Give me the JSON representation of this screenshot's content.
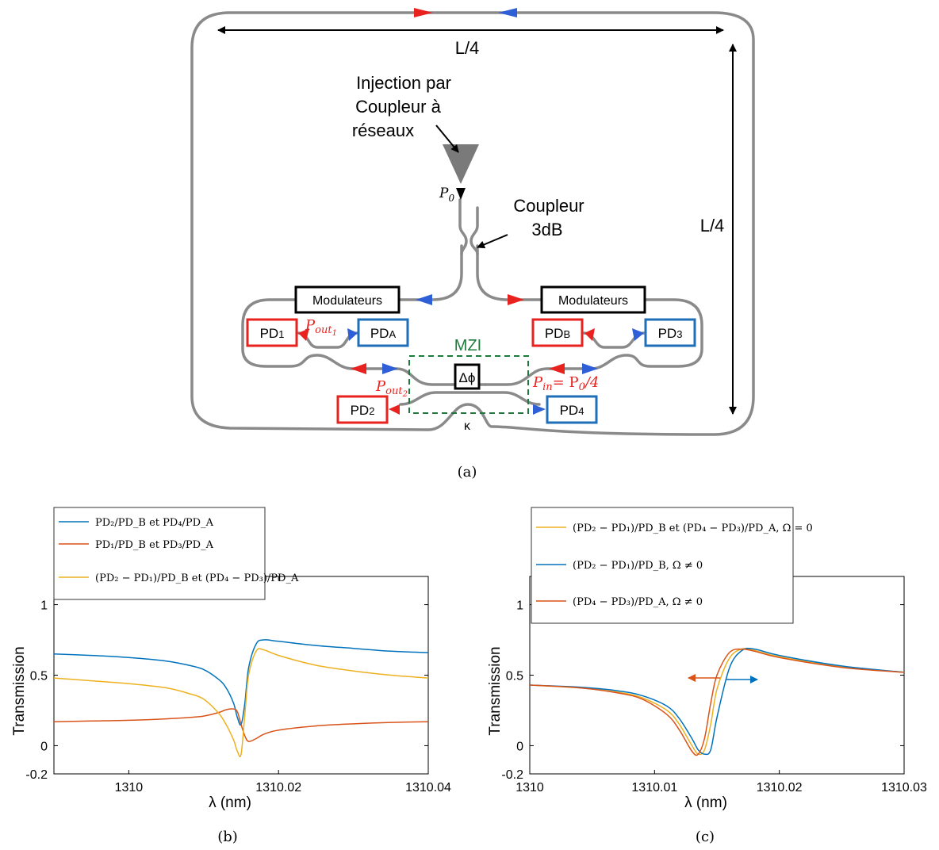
{
  "figure": {
    "caption_a": "(a)",
    "caption_b": "(b)",
    "caption_c": "(c)"
  },
  "diagram": {
    "top_length": "L/4",
    "side_length": "L/4",
    "injection_line1": "Injection par",
    "injection_line2": "Coupleur à",
    "injection_line3": "réseaux",
    "p0": "P",
    "p0_sub": "0",
    "coupler_line1": "Coupleur",
    "coupler_line2": "3dB",
    "modulator_left": "Modulateurs",
    "modulator_right": "Modulateurs",
    "pd1": "PD",
    "pd1_sub": "1",
    "pda": "PD",
    "pda_sub": "A",
    "pdb": "PD",
    "pdb_sub": "B",
    "pd3": "PD",
    "pd3_sub": "3",
    "pd2": "PD",
    "pd2_sub": "2",
    "pd4": "PD",
    "pd4_sub": "4",
    "mzi": "MZI",
    "delta_phi": "Δϕ",
    "pout1": "P",
    "pout1_sub": "out",
    "pout1_subsub": "1",
    "pout2": "P",
    "pout2_sub": "out",
    "pout2_subsub": "2",
    "pin_label": "P",
    "pin_sub": "in",
    "pin_eq": "= P",
    "pin_eq_sub": "0",
    "pin_tail": "/4",
    "kappa": "κ",
    "colors": {
      "red": "#e8231f",
      "blue": "#2f5fd6",
      "guide": "#8a8a8a",
      "mzi": "#1e7a3c"
    }
  },
  "chart_data": [
    {
      "type": "line",
      "panel": "b",
      "xlabel": "λ (nm)",
      "ylabel": "Transmission",
      "xlim": [
        1309.99,
        1310.04
      ],
      "ylim": [
        -0.2,
        1.2
      ],
      "xticks": [
        "1310",
        "1310.02",
        "1310.04"
      ],
      "yticks": [
        "-0.2",
        "0",
        "0.5",
        "1"
      ],
      "legend_placement": "top-left",
      "legend": [
        "PD₂/PD_B et PD₄/PD_A",
        "PD₁/PD_B et PD₃/PD_A",
        "(PD₂ − PD₁)/PD_B et (PD₄ − PD₃)/PD_A"
      ],
      "series": [
        {
          "name": "PD₂/PD_B et PD₄/PD_A",
          "color": "#0072bd",
          "x": [
            1309.99,
            1309.995,
            1310.0,
            1310.005,
            1310.008,
            1310.01,
            1310.012,
            1310.013,
            1310.014,
            1310.0145,
            1310.015,
            1310.0155,
            1310.016,
            1310.017,
            1310.018,
            1310.02,
            1310.025,
            1310.03,
            1310.035,
            1310.04
          ],
          "y": [
            0.65,
            0.64,
            0.625,
            0.6,
            0.57,
            0.54,
            0.47,
            0.41,
            0.3,
            0.2,
            0.15,
            0.3,
            0.55,
            0.72,
            0.75,
            0.74,
            0.71,
            0.69,
            0.67,
            0.66
          ]
        },
        {
          "name": "PD₁/PD_B et PD₃/PD_A",
          "color": "#d95319",
          "x": [
            1309.99,
            1309.995,
            1310.0,
            1310.005,
            1310.008,
            1310.01,
            1310.012,
            1310.013,
            1310.014,
            1310.0145,
            1310.015,
            1310.0155,
            1310.016,
            1310.017,
            1310.018,
            1310.02,
            1310.025,
            1310.03,
            1310.035,
            1310.04
          ],
          "y": [
            0.17,
            0.175,
            0.18,
            0.19,
            0.2,
            0.21,
            0.235,
            0.255,
            0.26,
            0.24,
            0.15,
            0.07,
            0.03,
            0.05,
            0.08,
            0.11,
            0.14,
            0.155,
            0.165,
            0.17
          ]
        },
        {
          "name": "(PD₂ − PD₁)/PD_B et (PD₄ − PD₃)/PD_A",
          "color": "#edb120",
          "x": [
            1309.99,
            1309.995,
            1310.0,
            1310.005,
            1310.008,
            1310.01,
            1310.012,
            1310.013,
            1310.014,
            1310.0145,
            1310.015,
            1310.0155,
            1310.016,
            1310.017,
            1310.018,
            1310.02,
            1310.025,
            1310.03,
            1310.035,
            1310.04
          ],
          "y": [
            0.48,
            0.46,
            0.44,
            0.41,
            0.37,
            0.33,
            0.23,
            0.15,
            0.04,
            -0.04,
            -0.06,
            0.22,
            0.5,
            0.67,
            0.68,
            0.64,
            0.57,
            0.53,
            0.5,
            0.48
          ]
        }
      ]
    },
    {
      "type": "line",
      "panel": "c",
      "xlabel": "λ (nm)",
      "ylabel": "Transmission",
      "xlim": [
        1310.0,
        1310.03
      ],
      "ylim": [
        -0.2,
        1.2
      ],
      "xticks": [
        "1310",
        "1310.01",
        "1310.02",
        "1310.03"
      ],
      "yticks": [
        "-0.2",
        "0",
        "0.5",
        "1"
      ],
      "legend_placement": "top-left",
      "legend": [
        "(PD₂ − PD₁)/PD_B et (PD₄ − PD₃)/PD_A, Ω = 0",
        "(PD₂ − PD₁)/PD_B, Ω ≠ 0",
        "(PD₄ − PD₃)/PD_A, Ω ≠ 0"
      ],
      "series": [
        {
          "name": "(PD₂ − PD₁)/PD_B et (PD₄ − PD₃)/PD_A, Ω = 0",
          "color": "#edb120",
          "x": [
            1310.0,
            1310.004,
            1310.007,
            1310.009,
            1310.011,
            1310.012,
            1310.013,
            1310.0135,
            1310.014,
            1310.0145,
            1310.015,
            1310.016,
            1310.017,
            1310.018,
            1310.02,
            1310.025,
            1310.03
          ],
          "y": [
            0.43,
            0.41,
            0.38,
            0.34,
            0.25,
            0.15,
            0.0,
            -0.06,
            -0.03,
            0.15,
            0.4,
            0.62,
            0.685,
            0.675,
            0.63,
            0.56,
            0.52
          ]
        },
        {
          "name": "(PD₂ − PD₁)/PD_B, Ω ≠ 0",
          "color": "#0072bd",
          "x": [
            1310.0,
            1310.004,
            1310.007,
            1310.009,
            1310.011,
            1310.012,
            1310.013,
            1310.0135,
            1310.014,
            1310.0145,
            1310.015,
            1310.016,
            1310.017,
            1310.018,
            1310.02,
            1310.025,
            1310.03
          ],
          "y": [
            0.43,
            0.415,
            0.39,
            0.355,
            0.28,
            0.19,
            0.05,
            -0.03,
            -0.06,
            -0.03,
            0.2,
            0.55,
            0.675,
            0.685,
            0.64,
            0.565,
            0.52
          ]
        },
        {
          "name": "(PD₄ − PD₃)/PD_A, Ω ≠ 0",
          "color": "#d95319",
          "x": [
            1310.0,
            1310.004,
            1310.007,
            1310.009,
            1310.011,
            1310.012,
            1310.013,
            1310.0135,
            1310.014,
            1310.0145,
            1310.015,
            1310.016,
            1310.017,
            1310.018,
            1310.02,
            1310.025,
            1310.03
          ],
          "y": [
            0.43,
            0.41,
            0.375,
            0.33,
            0.22,
            0.11,
            -0.04,
            -0.06,
            0.05,
            0.3,
            0.5,
            0.66,
            0.685,
            0.67,
            0.625,
            0.555,
            0.52
          ]
        }
      ]
    }
  ]
}
